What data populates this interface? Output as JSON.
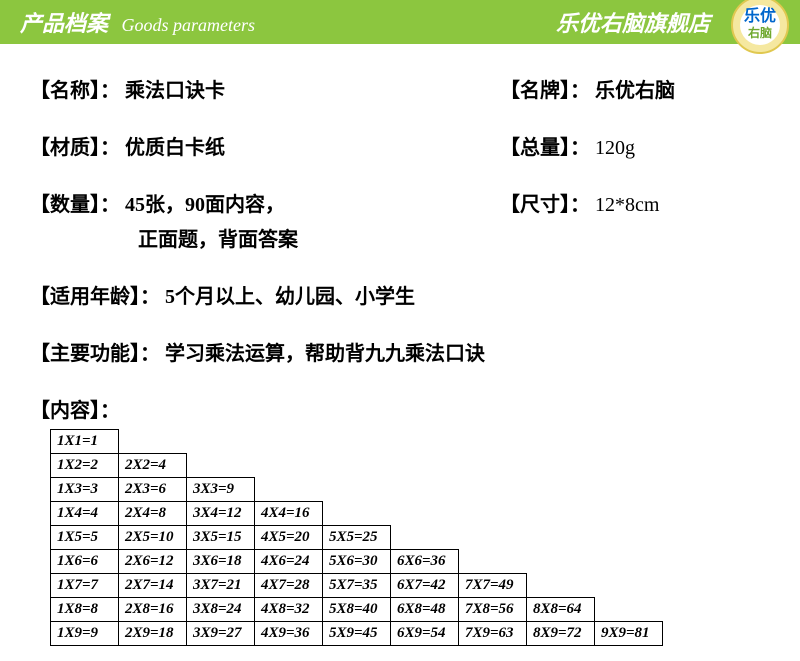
{
  "header": {
    "title_cn": "产品档案",
    "title_en": "Goods parameters",
    "store": "乐优右脑旗舰店",
    "logo_text_top": "乐优",
    "logo_text_bottom": "右脑",
    "banner_color": "#8cc63f"
  },
  "params": {
    "name": {
      "label": "【名称】：",
      "value": "乘法口诀卡"
    },
    "brand": {
      "label": "【名牌】：",
      "value": "乐优右脑"
    },
    "material": {
      "label": "【材质】：",
      "value": " 优质白卡纸"
    },
    "weight": {
      "label": "【总量】：",
      "value": "120g"
    },
    "quantity": {
      "label": "【数量】：",
      "value": "45张，90面内容，",
      "value2": "正面题，背面答案"
    },
    "size": {
      "label": "【尺寸】：",
      "value": "12*8cm"
    },
    "age": {
      "label": "【适用年龄】：",
      "value": "5个月以上、幼儿园、小学生"
    },
    "function": {
      "label": "【主要功能】：",
      "value": "学习乘法运算，帮助背九九乘法口诀"
    },
    "content_label": "【内容】："
  },
  "mult_table": {
    "type": "table",
    "rows": [
      [
        "1X1=1"
      ],
      [
        "1X2=2",
        "2X2=4"
      ],
      [
        "1X3=3",
        "2X3=6",
        "3X3=9"
      ],
      [
        "1X4=4",
        "2X4=8",
        "3X4=12",
        "4X4=16"
      ],
      [
        "1X5=5",
        "2X5=10",
        "3X5=15",
        "4X5=20",
        "5X5=25"
      ],
      [
        "1X6=6",
        "2X6=12",
        "3X6=18",
        "4X6=24",
        "5X6=30",
        "6X6=36"
      ],
      [
        "1X7=7",
        "2X7=14",
        "3X7=21",
        "4X7=28",
        "5X7=35",
        "6X7=42",
        "7X7=49"
      ],
      [
        "1X8=8",
        "2X8=16",
        "3X8=24",
        "4X8=32",
        "5X8=40",
        "6X8=48",
        "7X8=56",
        "8X8=64"
      ],
      [
        "1X9=9",
        "2X9=18",
        "3X9=27",
        "4X9=36",
        "5X9=45",
        "6X9=54",
        "7X9=63",
        "8X9=72",
        "9X9=81"
      ]
    ],
    "max_cols": 9,
    "border_color": "#000000",
    "cell_font_style": "italic"
  }
}
